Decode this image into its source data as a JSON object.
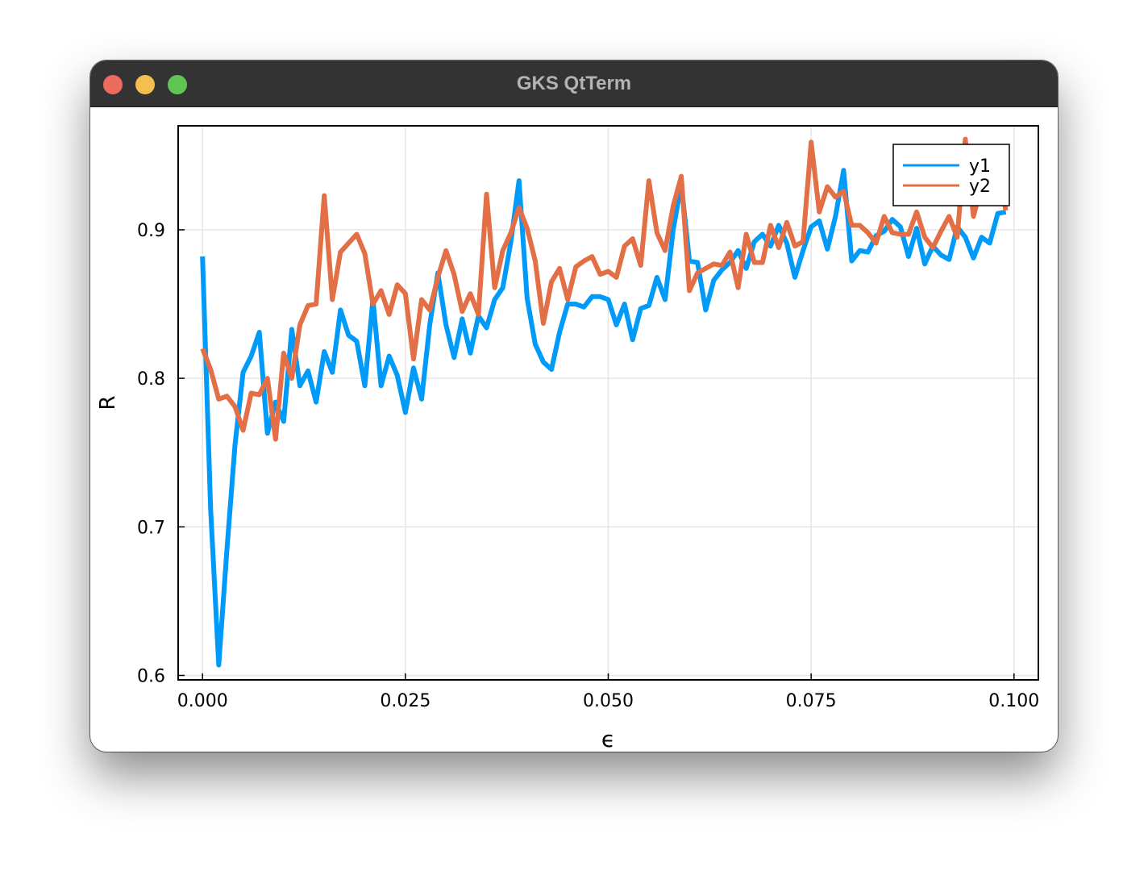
{
  "window": {
    "title": "GKS QtTerm",
    "buttons": {
      "close": "close-button",
      "minimize": "minimize-button",
      "maximize": "maximize-button"
    }
  },
  "colors": {
    "y1": "#009af9",
    "y2": "#e26f46",
    "grid": "#e5e5e5",
    "titlebar": "#333333"
  },
  "chart_data": {
    "type": "line",
    "title": "",
    "xlabel": "ϵ",
    "ylabel": "R",
    "xlim": [
      -0.003,
      0.103
    ],
    "ylim": [
      0.597,
      0.97
    ],
    "xticks": [
      0.0,
      0.025,
      0.05,
      0.075,
      0.1
    ],
    "xtick_labels": [
      "0.000",
      "0.025",
      "0.050",
      "0.075",
      "0.100"
    ],
    "yticks": [
      0.6,
      0.7,
      0.8,
      0.9
    ],
    "ytick_labels": [
      "0.6",
      "0.7",
      "0.8",
      "0.9"
    ],
    "grid": true,
    "legend_position": "top-right",
    "x_start": 0.0,
    "x_step": 0.001,
    "series": [
      {
        "name": "y1",
        "values": [
          0.882,
          0.712,
          0.607,
          0.684,
          0.755,
          0.804,
          0.815,
          0.831,
          0.763,
          0.784,
          0.771,
          0.833,
          0.795,
          0.805,
          0.784,
          0.818,
          0.804,
          0.846,
          0.829,
          0.825,
          0.795,
          0.853,
          0.795,
          0.815,
          0.802,
          0.777,
          0.807,
          0.786,
          0.836,
          0.871,
          0.836,
          0.814,
          0.84,
          0.817,
          0.842,
          0.834,
          0.853,
          0.861,
          0.892,
          0.933,
          0.854,
          0.823,
          0.811,
          0.806,
          0.831,
          0.85,
          0.85,
          0.848,
          0.855,
          0.855,
          0.853,
          0.836,
          0.85,
          0.826,
          0.847,
          0.849,
          0.868,
          0.853,
          0.9,
          0.931,
          0.879,
          0.878,
          0.846,
          0.866,
          0.873,
          0.878,
          0.886,
          0.874,
          0.892,
          0.897,
          0.889,
          0.903,
          0.891,
          0.868,
          0.886,
          0.902,
          0.906,
          0.887,
          0.909,
          0.94,
          0.879,
          0.886,
          0.885,
          0.896,
          0.899,
          0.907,
          0.902,
          0.882,
          0.901,
          0.877,
          0.889,
          0.883,
          0.88,
          0.902,
          0.895,
          0.881,
          0.895,
          0.891,
          0.911,
          0.912
        ]
      },
      {
        "name": "y2",
        "values": [
          0.82,
          0.806,
          0.786,
          0.788,
          0.781,
          0.765,
          0.79,
          0.789,
          0.8,
          0.759,
          0.817,
          0.8,
          0.836,
          0.849,
          0.85,
          0.923,
          0.853,
          0.885,
          0.891,
          0.897,
          0.884,
          0.85,
          0.859,
          0.843,
          0.863,
          0.857,
          0.813,
          0.853,
          0.846,
          0.868,
          0.886,
          0.87,
          0.845,
          0.857,
          0.843,
          0.924,
          0.861,
          0.886,
          0.898,
          0.915,
          0.901,
          0.879,
          0.837,
          0.865,
          0.874,
          0.853,
          0.875,
          0.879,
          0.882,
          0.87,
          0.872,
          0.868,
          0.889,
          0.894,
          0.876,
          0.933,
          0.898,
          0.886,
          0.916,
          0.936,
          0.859,
          0.871,
          0.874,
          0.877,
          0.876,
          0.885,
          0.861,
          0.897,
          0.878,
          0.878,
          0.903,
          0.888,
          0.905,
          0.889,
          0.892,
          0.959,
          0.912,
          0.929,
          0.922,
          0.926,
          0.903,
          0.903,
          0.898,
          0.891,
          0.909,
          0.898,
          0.897,
          0.897,
          0.912,
          0.895,
          0.888,
          0.899,
          0.909,
          0.895,
          0.961,
          0.909,
          0.93,
          0.942,
          0.937,
          0.913
        ]
      }
    ]
  }
}
